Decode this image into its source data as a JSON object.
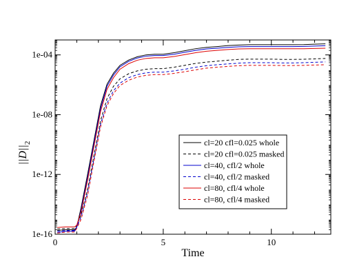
{
  "chart_data": {
    "type": "line",
    "title": "",
    "xlabel": "Time",
    "ylabel": "||D||",
    "ylabel_sub": "2",
    "xlim": [
      0,
      12.75
    ],
    "ylim": [
      1e-16,
      0.001
    ],
    "y_scale": "log",
    "grid": false,
    "legend_position": "lower-right",
    "x_ticks": [
      0,
      5,
      10
    ],
    "x_tick_labels": [
      "0",
      "5",
      "10"
    ],
    "y_ticks": [
      1e-16,
      1e-12,
      1e-08,
      0.0001
    ],
    "y_tick_labels": [
      "1e-16",
      "1e-12",
      "1e-08",
      "1e-04"
    ],
    "series": [
      {
        "name": "cl=20 cfl=0.025 whole",
        "color": "#000000",
        "dash": "solid",
        "x": [
          0.1,
          0.5,
          0.9,
          1.0,
          1.2,
          1.5,
          1.8,
          2.1,
          2.4,
          2.7,
          3.0,
          3.4,
          3.8,
          4.2,
          4.6,
          5.0,
          5.5,
          6.0,
          6.5,
          7.0,
          7.5,
          8.0,
          8.5,
          9.0,
          9.5,
          10.0,
          10.5,
          11.0,
          11.5,
          12.0,
          12.5
        ],
        "y": [
          1.8e-16,
          2e-16,
          2e-16,
          3e-16,
          6e-15,
          1e-12,
          2e-10,
          4e-08,
          1.1e-06,
          6e-06,
          2e-05,
          4.5e-05,
          7.5e-05,
          0.0001,
          0.00011,
          0.00011,
          0.00014,
          0.00019,
          0.00026,
          0.00032,
          0.00036,
          0.00042,
          0.00046,
          0.00048,
          0.00048,
          0.00048,
          0.00048,
          0.00048,
          0.00049,
          0.00052,
          0.00055
        ]
      },
      {
        "name": "cl=20 cfl=0.025 masked",
        "color": "#000000",
        "dash": "dashed",
        "x": [
          0.1,
          0.5,
          0.9,
          1.0,
          1.2,
          1.5,
          1.8,
          2.1,
          2.4,
          2.7,
          3.0,
          3.4,
          3.8,
          4.2,
          4.6,
          5.0,
          5.5,
          6.0,
          6.5,
          7.0,
          7.5,
          8.0,
          8.5,
          9.0,
          9.5,
          10.0,
          10.5,
          11.0,
          11.5,
          12.0,
          12.5
        ],
        "y": [
          2.2e-16,
          2.4e-16,
          2.4e-16,
          4e-16,
          2e-15,
          1e-13,
          2e-11,
          4e-09,
          1.2e-07,
          8e-07,
          2.5e-06,
          5.5e-06,
          8.5e-06,
          1.1e-05,
          1.2e-05,
          1.2e-05,
          1.5e-05,
          2e-05,
          2.7e-05,
          3.3e-05,
          3.8e-05,
          4.4e-05,
          5e-05,
          5.2e-05,
          5.2e-05,
          5.2e-05,
          5e-05,
          5e-05,
          5.1e-05,
          5.4e-05,
          5.8e-05
        ]
      },
      {
        "name": "cl=40, cfl/2 whole",
        "color": "#0000cc",
        "dash": "solid",
        "x": [
          0.1,
          0.5,
          0.9,
          1.0,
          1.2,
          1.5,
          1.8,
          2.1,
          2.4,
          2.7,
          3.0,
          3.4,
          3.8,
          4.2,
          4.6,
          5.0,
          5.5,
          6.0,
          6.5,
          7.0,
          7.5,
          8.0,
          8.5,
          9.0,
          9.5,
          10.0,
          10.5,
          11.0,
          11.5,
          12.0,
          12.5
        ],
        "y": [
          1.3e-16,
          1.6e-16,
          1.6e-16,
          3e-16,
          4e-15,
          6e-13,
          1.3e-10,
          2.5e-08,
          8e-07,
          4.5e-06,
          1.6e-05,
          3.7e-05,
          6.2e-05,
          8.2e-05,
          9e-05,
          9e-05,
          0.00011,
          0.00015,
          0.0002,
          0.00025,
          0.00028,
          0.00032,
          0.00035,
          0.00036,
          0.00036,
          0.00036,
          0.00036,
          0.00036,
          0.00037,
          0.00039,
          0.00041
        ]
      },
      {
        "name": "cl=40, cfl/2 masked",
        "color": "#0000cc",
        "dash": "dashed",
        "x": [
          0.1,
          0.5,
          0.9,
          1.0,
          1.2,
          1.5,
          1.8,
          2.1,
          2.4,
          2.7,
          3.0,
          3.4,
          3.8,
          4.2,
          4.6,
          5.0,
          5.5,
          6.0,
          6.5,
          7.0,
          7.5,
          8.0,
          8.5,
          9.0,
          9.5,
          10.0,
          10.5,
          11.0,
          11.5,
          12.0,
          12.5
        ],
        "y": [
          1.6e-16,
          1.8e-16,
          1.8e-16,
          3e-16,
          1.5e-15,
          6e-14,
          1.2e-11,
          2.2e-09,
          6e-08,
          4e-07,
          1.3e-06,
          3e-06,
          4.8e-06,
          6.3e-06,
          7e-06,
          7e-06,
          8.5e-06,
          1.1e-05,
          1.5e-05,
          1.9e-05,
          2.2e-05,
          2.5e-05,
          2.8e-05,
          3e-05,
          3e-05,
          3e-05,
          2.9e-05,
          2.9e-05,
          3e-05,
          3.2e-05,
          3.4e-05
        ]
      },
      {
        "name": "cl=80, cfl/4 whole",
        "color": "#dd0000",
        "dash": "solid",
        "x": [
          0.1,
          0.5,
          0.9,
          1.0,
          1.2,
          1.5,
          1.8,
          2.1,
          2.4,
          2.7,
          3.0,
          3.4,
          3.8,
          4.2,
          4.6,
          5.0,
          5.5,
          6.0,
          6.5,
          7.0,
          7.5,
          8.0,
          8.5,
          9.0,
          9.5,
          10.0,
          10.5,
          11.0,
          11.5,
          12.0,
          12.5
        ],
        "y": [
          2.8e-16,
          3.1e-16,
          3.1e-16,
          4e-16,
          3e-15,
          4e-13,
          8e-11,
          1.6e-08,
          5e-07,
          3e-06,
          1.1e-05,
          2.6e-05,
          4.4e-05,
          5.8e-05,
          6.4e-05,
          6.4e-05,
          7.8e-05,
          0.000105,
          0.00014,
          0.000175,
          0.0002,
          0.00023,
          0.00025,
          0.00026,
          0.00026,
          0.00026,
          0.00026,
          0.00026,
          0.00026,
          0.00027,
          0.00028
        ]
      },
      {
        "name": "cl=80, cfl/4 masked",
        "color": "#dd0000",
        "dash": "dashed",
        "x": [
          0.1,
          0.5,
          0.9,
          1.0,
          1.2,
          1.5,
          1.8,
          2.1,
          2.4,
          2.7,
          3.0,
          3.4,
          3.8,
          4.2,
          4.6,
          5.0,
          5.5,
          6.0,
          6.5,
          7.0,
          7.5,
          8.0,
          8.5,
          9.0,
          9.5,
          10.0,
          10.5,
          11.0,
          11.5,
          12.0,
          12.5
        ],
        "y": [
          1.2e-16,
          1.4e-16,
          1.4e-16,
          2.5e-16,
          1e-15,
          4e-14,
          8e-12,
          1.5e-09,
          4e-08,
          2.6e-07,
          9e-07,
          2e-06,
          3.3e-06,
          4.3e-06,
          4.8e-06,
          4.8e-06,
          5.8e-06,
          7.5e-06,
          1e-05,
          1.3e-05,
          1.5e-05,
          1.7e-05,
          1.9e-05,
          2e-05,
          2e-05,
          2e-05,
          1.95e-05,
          1.95e-05,
          2e-05,
          2.1e-05,
          2.2e-05
        ]
      }
    ]
  }
}
